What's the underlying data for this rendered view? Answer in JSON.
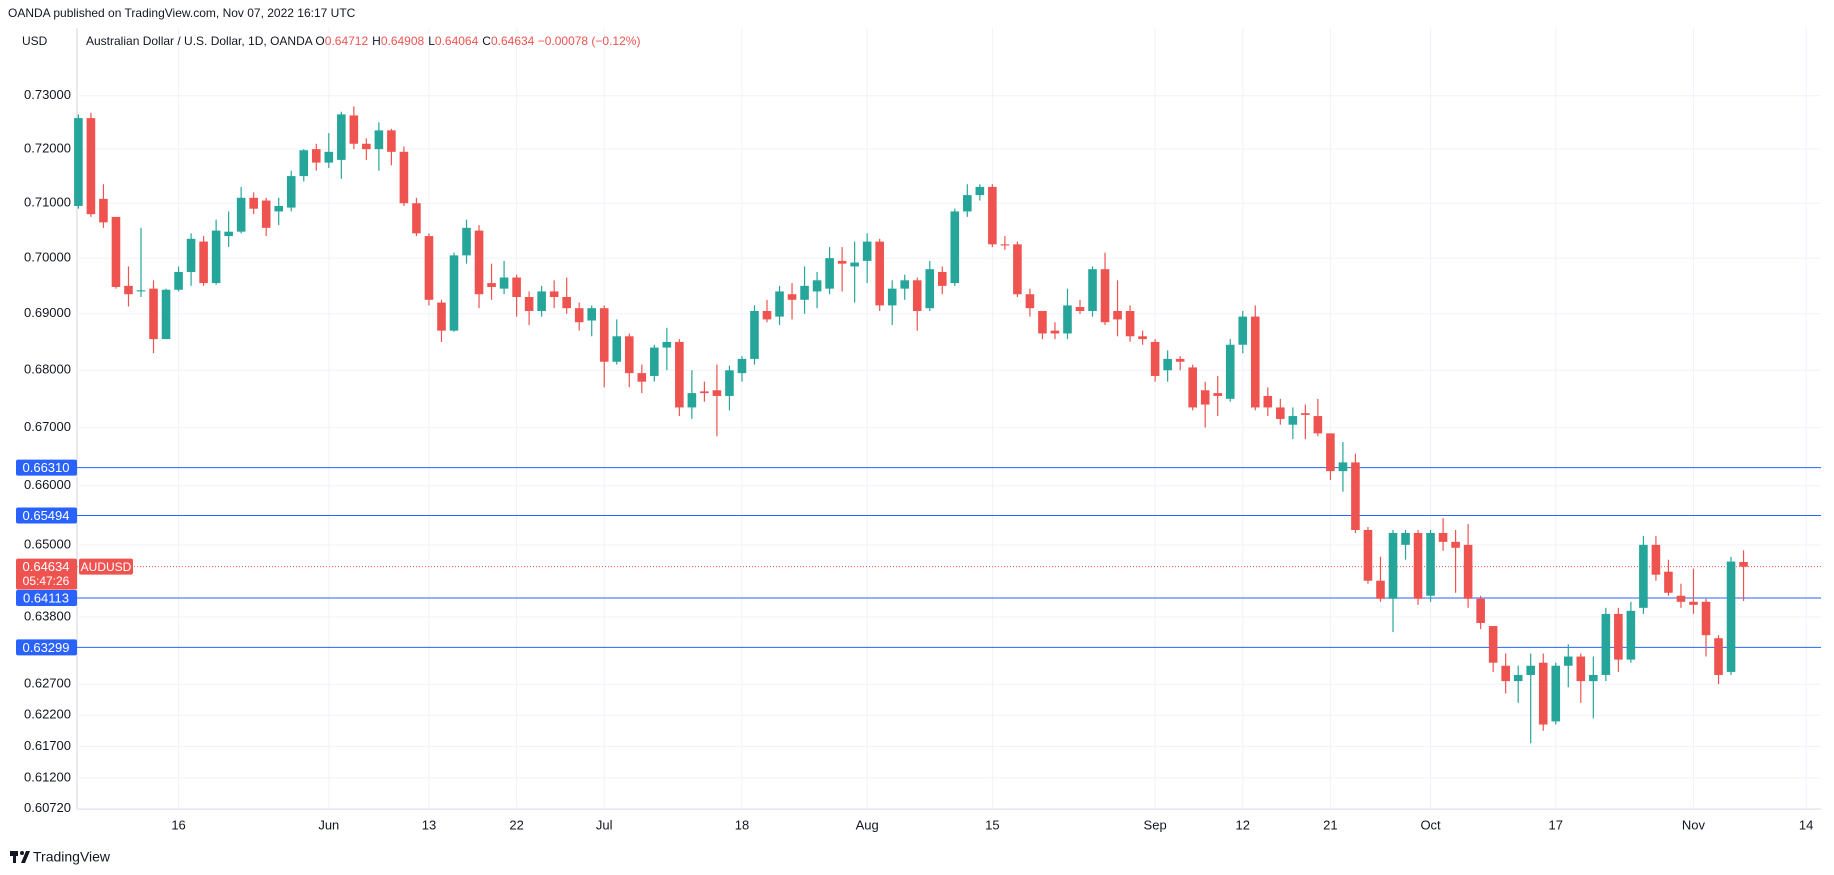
{
  "header": {
    "publisher": "OANDA published on TradingView.com, Nov 07, 2022 16:17 UTC",
    "footer_logo": "TradingView"
  },
  "chart_data": {
    "type": "candlestick",
    "currency": "USD",
    "title": "Australian Dollar / U.S. Dollar, 1D, OANDA",
    "ohlc_legend": [
      {
        "key": "O",
        "text": "0.64712"
      },
      {
        "key": "H",
        "text": "0.64908"
      },
      {
        "key": "L",
        "text": "0.64064"
      },
      {
        "key": "C",
        "text": "0.64634"
      }
    ],
    "change": "−0.00078 (−0.12%)",
    "categories": [
      null,
      null,
      null,
      null,
      null,
      null,
      null,
      null,
      "16",
      null,
      null,
      null,
      null,
      null,
      null,
      null,
      null,
      null,
      null,
      null,
      "Jun",
      null,
      null,
      null,
      null,
      null,
      null,
      null,
      "13",
      null,
      null,
      null,
      null,
      null,
      null,
      "22",
      null,
      null,
      null,
      null,
      null,
      null,
      "Jul",
      null,
      null,
      null,
      null,
      null,
      null,
      null,
      null,
      null,
      null,
      "18",
      null,
      null,
      null,
      null,
      null,
      null,
      null,
      null,
      null,
      "Aug",
      null,
      null,
      null,
      null,
      null,
      null,
      null,
      null,
      null,
      "15",
      null,
      null,
      null,
      null,
      null,
      null,
      null,
      null,
      null,
      null,
      null,
      null,
      "Sep",
      null,
      null,
      null,
      null,
      null,
      null,
      "12",
      null,
      null,
      null,
      null,
      null,
      null,
      "21",
      null,
      null,
      null,
      null,
      null,
      null,
      null,
      "Oct",
      null,
      null,
      null,
      null,
      null,
      null,
      null,
      null,
      null,
      "17",
      null,
      null,
      null,
      null,
      null,
      null,
      null,
      null,
      null,
      null,
      "Nov",
      null,
      null,
      null,
      null,
      null,
      null,
      null,
      null,
      "14",
      null
    ],
    "open": [
      0.7095,
      0.7258,
      0.7108,
      0.7075,
      0.695,
      0.694,
      0.6945,
      0.6855,
      0.6943,
      0.6975,
      0.703,
      0.6955,
      0.704,
      0.7048,
      0.711,
      0.7105,
      0.7085,
      0.7092,
      0.715,
      0.72,
      0.7175,
      0.718,
      0.7263,
      0.721,
      0.72,
      0.7235,
      0.7195,
      0.71,
      0.704,
      0.692,
      0.687,
      0.7005,
      0.705,
      0.6955,
      0.6945,
      0.6965,
      0.693,
      0.6905,
      0.694,
      0.693,
      0.691,
      0.6888,
      0.691,
      0.6815,
      0.686,
      0.6795,
      0.679,
      0.684,
      0.685,
      0.6735,
      0.6763,
      0.6765,
      0.6755,
      0.6795,
      0.682,
      0.6905,
      0.6895,
      0.6935,
      0.6925,
      0.694,
      0.6945,
      0.6995,
      0.6985,
      0.6995,
      0.703,
      0.6915,
      0.6945,
      0.696,
      0.691,
      0.6975,
      0.6955,
      0.7085,
      0.7115,
      0.713,
      0.7025,
      0.7025,
      0.6935,
      0.6905,
      0.687,
      0.6865,
      0.6912,
      0.6905,
      0.698,
      0.6905,
      0.6905,
      0.686,
      0.685,
      0.68,
      0.682,
      0.6805,
      0.6765,
      0.676,
      0.675,
      0.6845,
      0.6895,
      0.6755,
      0.6735,
      0.6705,
      0.6725,
      0.672,
      0.669,
      0.6625,
      0.664,
      0.6525,
      0.644,
      0.641,
      0.65,
      0.652,
      0.6415,
      0.652,
      0.6505,
      0.65,
      0.641,
      0.6365,
      0.63,
      0.6275,
      0.6285,
      0.6305,
      0.621,
      0.63,
      0.6315,
      0.6275,
      0.6285,
      0.6385,
      0.631,
      0.6395,
      0.65,
      0.6455,
      0.6415,
      0.6405,
      0.6405,
      0.6345,
      0.629,
      0.64712,
      null,
      null,
      null,
      null,
      null,
      null
    ],
    "high": [
      0.7265,
      0.7268,
      0.7135,
      0.7075,
      0.6985,
      0.7055,
      0.696,
      0.6945,
      0.6985,
      0.7045,
      0.704,
      0.707,
      0.7085,
      0.713,
      0.712,
      0.711,
      0.711,
      0.716,
      0.72,
      0.721,
      0.723,
      0.727,
      0.728,
      0.722,
      0.725,
      0.7238,
      0.7205,
      0.711,
      0.7045,
      0.6925,
      0.701,
      0.707,
      0.706,
      0.699,
      0.6995,
      0.697,
      0.694,
      0.695,
      0.696,
      0.6965,
      0.692,
      0.6915,
      0.6915,
      0.689,
      0.6865,
      0.681,
      0.6845,
      0.6875,
      0.6855,
      0.68,
      0.678,
      0.681,
      0.6808,
      0.6825,
      0.6915,
      0.6925,
      0.695,
      0.6955,
      0.6985,
      0.6975,
      0.702,
      0.702,
      0.703,
      0.7045,
      0.7035,
      0.696,
      0.697,
      0.6965,
      0.6995,
      0.6985,
      0.709,
      0.7135,
      0.7135,
      0.7135,
      0.704,
      0.703,
      0.6945,
      0.6905,
      0.6885,
      0.6945,
      0.6925,
      0.6985,
      0.701,
      0.696,
      0.6915,
      0.687,
      0.6855,
      0.6835,
      0.6825,
      0.681,
      0.678,
      0.679,
      0.6855,
      0.6905,
      0.6915,
      0.677,
      0.675,
      0.6735,
      0.674,
      0.675,
      0.669,
      0.6675,
      0.6655,
      0.653,
      0.648,
      0.6525,
      0.6525,
      0.6525,
      0.6525,
      0.6545,
      0.6525,
      0.6535,
      0.6415,
      0.6365,
      0.632,
      0.63,
      0.632,
      0.632,
      0.6305,
      0.6335,
      0.632,
      0.6315,
      0.6395,
      0.6395,
      0.6405,
      0.6515,
      0.6515,
      0.6475,
      0.6435,
      0.646,
      0.641,
      0.635,
      0.648,
      0.64908,
      null,
      null,
      null,
      null,
      null,
      null
    ],
    "low": [
      0.709,
      0.7075,
      0.7055,
      0.6945,
      0.6913,
      0.693,
      0.683,
      0.6855,
      0.694,
      0.695,
      0.695,
      0.6952,
      0.702,
      0.7045,
      0.708,
      0.704,
      0.706,
      0.7085,
      0.714,
      0.716,
      0.7165,
      0.7145,
      0.72,
      0.718,
      0.716,
      0.717,
      0.7095,
      0.704,
      0.6915,
      0.685,
      0.6868,
      0.699,
      0.691,
      0.6925,
      0.6935,
      0.6895,
      0.688,
      0.6895,
      0.691,
      0.69,
      0.687,
      0.686,
      0.677,
      0.681,
      0.677,
      0.676,
      0.678,
      0.68,
      0.672,
      0.6715,
      0.6745,
      0.6685,
      0.673,
      0.678,
      0.681,
      0.6885,
      0.688,
      0.689,
      0.69,
      0.691,
      0.6935,
      0.694,
      0.692,
      0.6955,
      0.6905,
      0.688,
      0.6925,
      0.687,
      0.6905,
      0.6935,
      0.695,
      0.7075,
      0.7105,
      0.702,
      0.7015,
      0.693,
      0.6895,
      0.6855,
      0.6855,
      0.6855,
      0.69,
      0.6895,
      0.688,
      0.686,
      0.685,
      0.6845,
      0.678,
      0.678,
      0.68,
      0.673,
      0.67,
      0.672,
      0.6745,
      0.683,
      0.673,
      0.672,
      0.6705,
      0.668,
      0.668,
      0.6685,
      0.661,
      0.659,
      0.652,
      0.6435,
      0.6405,
      0.6355,
      0.6475,
      0.64,
      0.6405,
      0.649,
      0.642,
      0.6395,
      0.636,
      0.629,
      0.6255,
      0.624,
      0.6175,
      0.6195,
      0.6205,
      0.6265,
      0.624,
      0.6215,
      0.6275,
      0.629,
      0.6305,
      0.6385,
      0.644,
      0.6415,
      0.6395,
      0.6385,
      0.6315,
      0.627,
      0.6285,
      0.64064,
      null,
      null,
      null,
      null,
      null,
      null
    ],
    "close": [
      0.7258,
      0.708,
      0.7065,
      0.6948,
      0.6935,
      0.6942,
      0.6855,
      0.6943,
      0.6975,
      0.7035,
      0.6955,
      0.705,
      0.7048,
      0.711,
      0.709,
      0.7055,
      0.7095,
      0.715,
      0.7198,
      0.7175,
      0.7195,
      0.7265,
      0.721,
      0.72,
      0.7235,
      0.7195,
      0.71,
      0.7045,
      0.6925,
      0.687,
      0.7005,
      0.7055,
      0.6935,
      0.6948,
      0.6965,
      0.693,
      0.6905,
      0.694,
      0.693,
      0.691,
      0.6885,
      0.691,
      0.6815,
      0.686,
      0.6795,
      0.678,
      0.684,
      0.685,
      0.6735,
      0.676,
      0.676,
      0.6755,
      0.68,
      0.682,
      0.6905,
      0.689,
      0.694,
      0.6925,
      0.695,
      0.696,
      0.7,
      0.699,
      0.6992,
      0.703,
      0.6915,
      0.6945,
      0.696,
      0.6905,
      0.698,
      0.695,
      0.7085,
      0.7115,
      0.713,
      0.7025,
      0.7023,
      0.6935,
      0.691,
      0.6865,
      0.6865,
      0.6915,
      0.6905,
      0.698,
      0.6885,
      0.689,
      0.686,
      0.6855,
      0.679,
      0.682,
      0.6815,
      0.6735,
      0.674,
      0.6755,
      0.6845,
      0.6895,
      0.6735,
      0.6735,
      0.6715,
      0.672,
      0.6722,
      0.669,
      0.6625,
      0.664,
      0.6525,
      0.644,
      0.641,
      0.652,
      0.652,
      0.641,
      0.652,
      0.6505,
      0.6495,
      0.641,
      0.637,
      0.6305,
      0.6275,
      0.6285,
      0.63,
      0.6205,
      0.63,
      0.6315,
      0.6275,
      0.6285,
      0.6385,
      0.631,
      0.639,
      0.65,
      0.645,
      0.642,
      0.6405,
      0.64,
      0.635,
      0.6285,
      0.6472,
      0.64634,
      null,
      null,
      null,
      null,
      null,
      null
    ],
    "colors": {
      "up": "#26a69a",
      "down": "#ef5350"
    },
    "log_scale": true,
    "grid": true,
    "ylim": [
      0.6071,
      0.7429
    ],
    "yticks": [
      {
        "value": 0.73,
        "label": "0.73000"
      },
      {
        "value": 0.72,
        "label": "0.72000"
      },
      {
        "value": 0.71,
        "label": "0.71000"
      },
      {
        "value": 0.7,
        "label": "0.70000"
      },
      {
        "value": 0.69,
        "label": "0.69000"
      },
      {
        "value": 0.68,
        "label": "0.68000"
      },
      {
        "value": 0.67,
        "label": "0.67000"
      },
      {
        "value": 0.66,
        "label": "0.66000"
      },
      {
        "value": 0.65,
        "label": "0.65000"
      },
      {
        "value": 0.638,
        "label": "0.63800"
      },
      {
        "value": 0.627,
        "label": "0.62700"
      },
      {
        "value": 0.622,
        "label": "0.62200"
      },
      {
        "value": 0.617,
        "label": "0.61700"
      },
      {
        "value": 0.612,
        "label": "0.61200"
      },
      {
        "value": 0.6072,
        "label": "0.60720"
      }
    ],
    "levels": [
      {
        "value": 0.6631,
        "label": "0.66310"
      },
      {
        "value": 0.65494,
        "label": "0.65494"
      },
      {
        "value": 0.64113,
        "label": "0.64113"
      },
      {
        "value": 0.63299,
        "label": "0.63299"
      }
    ],
    "level_color": "#2962ff",
    "last_price": {
      "value": 0.64634,
      "label": "0.64634",
      "symbol": "AUDUSD",
      "countdown": "05:47:26",
      "color": "#ef5350"
    }
  }
}
